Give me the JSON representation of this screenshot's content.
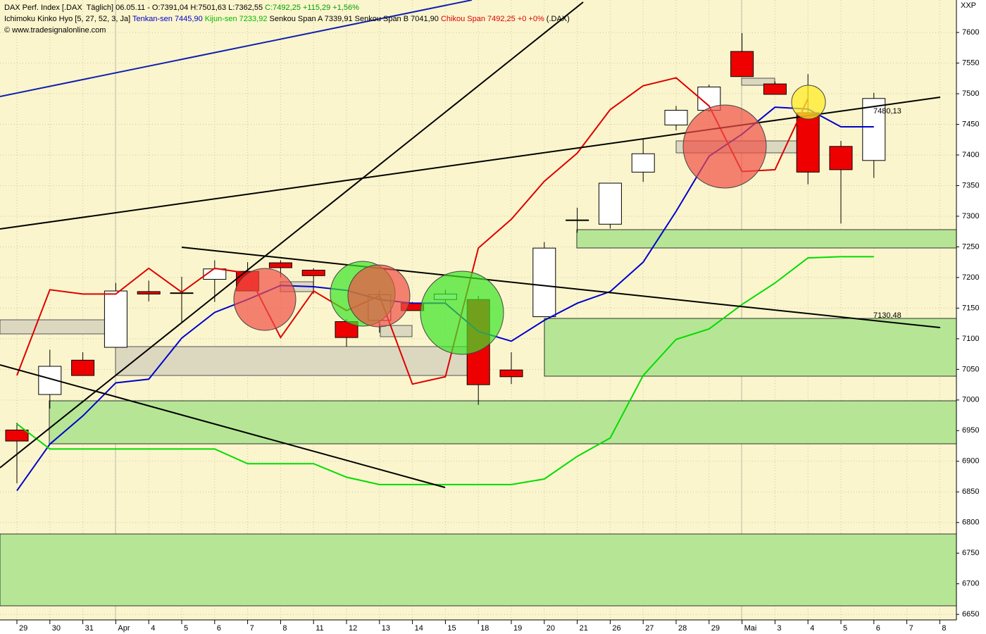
{
  "chart_data": {
    "type": "candlestick",
    "header": {
      "line1": "DAX Perf. Index [.DAX  Täglich] 06.05.11 - O:7391,04 H:7501,63 L:7362,55",
      "line1_change": "C:7492,25 +115,29 +1,56%",
      "line2_name": "Ichimoku Kinko Hyo [5, 27, 52, 3, Ja]",
      "line2_spans": "Senkou Span A 7339,91 Senkou Span B 7041,90",
      "line2_symbol": "(.DAX)",
      "line3": "© www.tradesignalonline.com"
    },
    "corner_label": "XXP",
    "categories": [
      "29",
      "30",
      "31",
      "Apr",
      "4",
      "5",
      "6",
      "7",
      "8",
      "11",
      "12",
      "13",
      "14",
      "15",
      "18",
      "19",
      "20",
      "21",
      "26",
      "27",
      "28",
      "29",
      "Mai",
      "3",
      "4",
      "5",
      "6",
      "7",
      "8"
    ],
    "ohlc": {
      "open": [
        6951,
        7009,
        7065,
        7086,
        7177,
        7175,
        7197,
        7210,
        7224,
        7212,
        7128,
        7130,
        7158,
        7164,
        7164,
        7049,
        7136,
        7293,
        7287,
        7372,
        7449,
        7473,
        7569,
        7516,
        7469,
        7414,
        7391.04,
        null,
        null
      ],
      "high": [
        6963,
        7082,
        7078,
        7191,
        7195,
        7201,
        7228,
        7225,
        7228,
        7215,
        7132,
        7180,
        7160,
        7180,
        7170,
        7078,
        7258,
        7314,
        7354,
        7427,
        7480,
        7515,
        7599,
        7520,
        7532,
        7423,
        7501.63,
        null,
        null
      ],
      "low": [
        6864,
        6986,
        7040,
        7086,
        7161,
        7126,
        7160,
        7178,
        7200,
        7173,
        7087,
        7110,
        7146,
        7160,
        6992,
        7026,
        7136,
        7273,
        7280,
        7356,
        7440,
        7470,
        7528,
        7499,
        7352,
        7288,
        7362.55,
        null,
        null
      ],
      "close": [
        6933,
        7055,
        7040,
        7178,
        7173,
        7174,
        7214,
        7178,
        7216,
        7203,
        7102,
        7172,
        7146,
        7173,
        7025,
        7038,
        7248,
        7294,
        7354,
        7402,
        7473,
        7511,
        7528,
        7499,
        7372,
        7376,
        7492.25,
        null,
        null
      ],
      "up_color": "#ffffff",
      "down_color": "#ee0000"
    },
    "indicators": [
      {
        "label": "Tenkan-sen 7445,90",
        "color": "#0000cc",
        "values": [
          6852,
          6928,
          6974,
          7028,
          7034,
          7101,
          7143,
          7164,
          7187,
          7185,
          7179,
          7164,
          7158,
          7158,
          7112,
          7096,
          7130,
          7158,
          7177,
          7225,
          7308,
          7398,
          7434,
          7478,
          7475,
          7446,
          7446,
          null,
          null
        ]
      },
      {
        "label": "Kijun-sen 7233,92",
        "color": "#00dd00",
        "values": [
          6961,
          6920,
          6920,
          6920,
          6920,
          6920,
          6920,
          6896,
          6896,
          6896,
          6874,
          6862,
          6862,
          6862,
          6862,
          6862,
          6871,
          6908,
          6938,
          7040,
          7099,
          7116,
          7156,
          7191,
          7232,
          7234,
          7234,
          null,
          null
        ]
      },
      {
        "label": "Chikou Span 7492,25 +0 +0%",
        "color": "#dd0000",
        "values": [
          7040,
          7180,
          7173,
          7173,
          7215,
          7176,
          7215,
          7207,
          7102,
          7178,
          7146,
          7170,
          7026,
          7038,
          7248,
          7295,
          7357,
          7403,
          7474,
          7513,
          7526,
          7480,
          7373,
          7376,
          7492,
          null,
          null,
          null,
          null
        ]
      }
    ],
    "annotations": [
      {
        "text": "7480,13"
      },
      {
        "text": "7130,48"
      }
    ],
    "ylim": [
      6641,
      7653
    ],
    "yticks": [
      6650,
      6700,
      6750,
      6800,
      6850,
      6900,
      6950,
      7000,
      7050,
      7100,
      7150,
      7200,
      7250,
      7300,
      7350,
      7400,
      7450,
      7500,
      7550,
      7600
    ],
    "grid": true
  }
}
